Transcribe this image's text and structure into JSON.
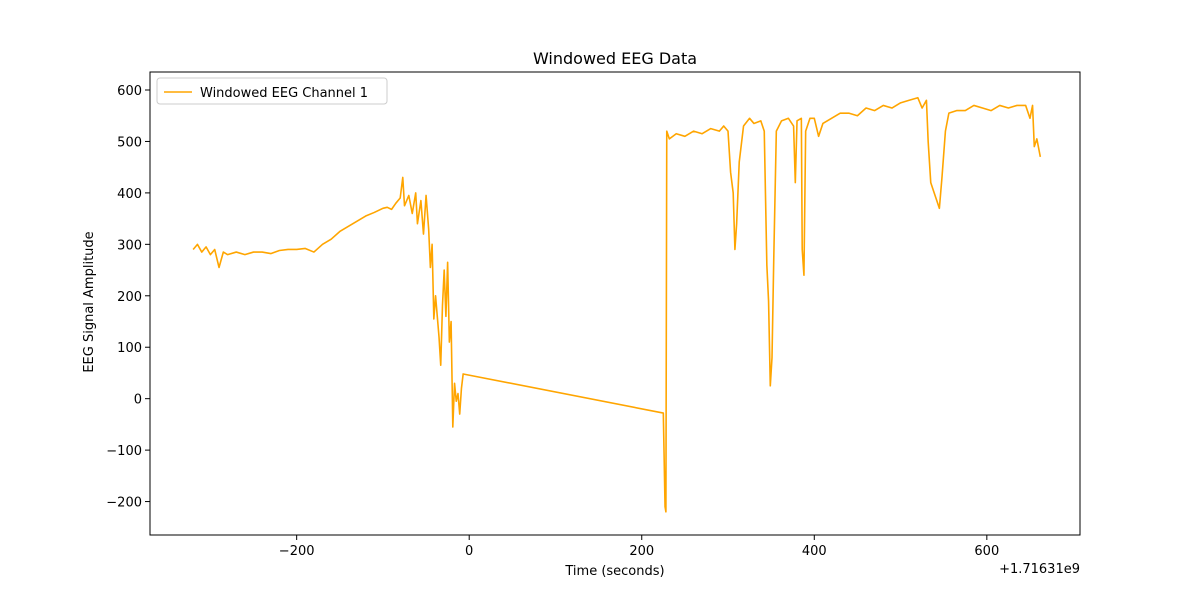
{
  "chart_data": {
    "type": "line",
    "title": "Windowed EEG Data",
    "xlabel": "Time (seconds)",
    "ylabel": "EEG Signal Amplitude",
    "x_offset_label": "+1.71631e9",
    "legend": "upper left",
    "xlim": [
      -370,
      708
    ],
    "ylim": [
      -265,
      635
    ],
    "xticks": [
      {
        "value": -200,
        "label": "−200"
      },
      0,
      200,
      400,
      600
    ],
    "yticks": [
      {
        "value": -200,
        "label": "−200"
      },
      {
        "value": -100,
        "label": "−100"
      },
      0,
      100,
      200,
      300,
      400,
      500,
      600
    ],
    "series": [
      {
        "name": "Windowed EEG Channel 1",
        "color": "#ffa500",
        "x": [
          -320,
          -315,
          -310,
          -305,
          -300,
          -295,
          -290,
          -285,
          -280,
          -270,
          -260,
          -250,
          -240,
          -230,
          -220,
          -210,
          -200,
          -190,
          -180,
          -170,
          -160,
          -150,
          -140,
          -130,
          -120,
          -110,
          -100,
          -95,
          -90,
          -85,
          -80,
          -77,
          -75,
          -70,
          -66,
          -62,
          -60,
          -56,
          -53,
          -50,
          -47,
          -45,
          -43,
          -41,
          -39,
          -37,
          -35,
          -33,
          -31,
          -29,
          -27,
          -25,
          -23,
          -21,
          -19,
          -17,
          -15,
          -13,
          -11,
          -9,
          -7,
          225,
          227,
          228,
          229,
          232,
          240,
          250,
          260,
          270,
          280,
          290,
          295,
          300,
          303,
          306,
          308,
          310,
          313,
          318,
          325,
          330,
          338,
          342,
          345,
          347,
          349,
          351,
          353,
          356,
          362,
          370,
          376,
          378,
          380,
          385,
          386,
          388,
          390,
          395,
          400,
          405,
          410,
          420,
          430,
          440,
          450,
          460,
          470,
          480,
          490,
          500,
          510,
          520,
          525,
          530,
          532,
          535,
          538,
          542,
          545,
          548,
          552,
          556,
          565,
          575,
          585,
          595,
          605,
          615,
          625,
          635,
          645,
          650,
          653,
          655,
          658,
          662
        ],
        "values": [
          290,
          300,
          285,
          295,
          280,
          290,
          255,
          285,
          280,
          285,
          280,
          285,
          285,
          282,
          288,
          290,
          290,
          292,
          285,
          300,
          310,
          325,
          335,
          345,
          355,
          362,
          370,
          372,
          368,
          380,
          390,
          430,
          375,
          395,
          360,
          400,
          340,
          385,
          320,
          395,
          330,
          255,
          300,
          155,
          200,
          160,
          120,
          65,
          180,
          250,
          160,
          265,
          110,
          150,
          -55,
          30,
          -5,
          10,
          -30,
          20,
          48,
          -28,
          -210,
          -220,
          520,
          505,
          515,
          510,
          520,
          515,
          525,
          520,
          530,
          520,
          440,
          400,
          290,
          340,
          460,
          530,
          545,
          535,
          540,
          520,
          260,
          190,
          25,
          80,
          270,
          520,
          540,
          545,
          530,
          420,
          540,
          545,
          290,
          240,
          520,
          545,
          545,
          510,
          535,
          545,
          555,
          555,
          550,
          565,
          560,
          570,
          565,
          575,
          580,
          585,
          565,
          580,
          500,
          420,
          405,
          385,
          370,
          430,
          520,
          555,
          560,
          560,
          570,
          565,
          560,
          570,
          565,
          570,
          570,
          545,
          570,
          490,
          505,
          470
        ]
      }
    ]
  }
}
